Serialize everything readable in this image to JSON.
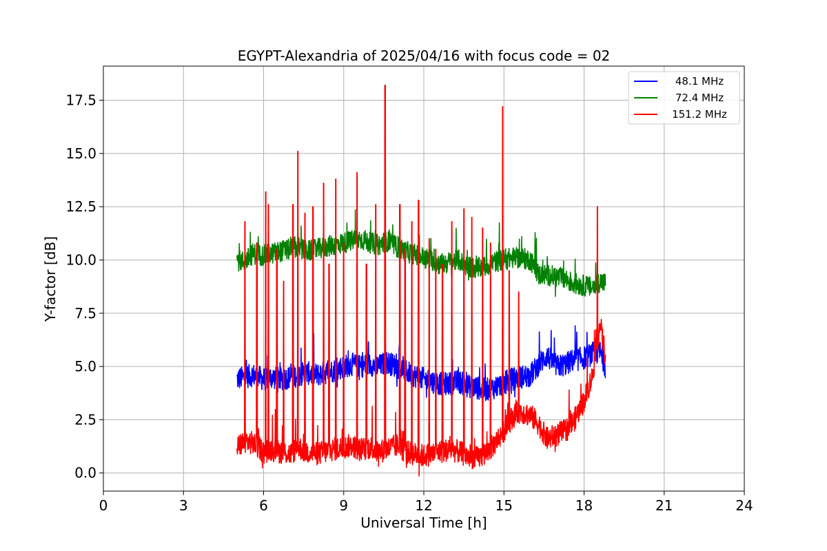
{
  "chart_data": {
    "type": "line",
    "title": "EGYPT-Alexandria of 2025/04/16 with focus code = 02",
    "xlabel": "Universal Time [h]",
    "ylabel": "Y-factor [dB]",
    "xlim": [
      0,
      24
    ],
    "ylim": [
      -0.85,
      19.1
    ],
    "xticks": [
      0,
      3,
      6,
      9,
      12,
      15,
      18,
      21,
      24
    ],
    "xtick_labels": [
      "0",
      "3",
      "6",
      "9",
      "12",
      "15",
      "18",
      "21",
      "24"
    ],
    "yticks": [
      0.0,
      2.5,
      5.0,
      7.5,
      10.0,
      12.5,
      15.0,
      17.5
    ],
    "ytick_labels": [
      "0.0",
      "2.5",
      "5.0",
      "7.5",
      "10.0",
      "12.5",
      "15.0",
      "17.5"
    ],
    "grid": true,
    "legend_position": "top-right",
    "series": [
      {
        "name": "48.1 MHz",
        "legend_label": "  48.1 MHz",
        "color": "#0000ff",
        "x": [
          5.0,
          5.3,
          5.6,
          6.0,
          6.3,
          6.6,
          7.0,
          7.3,
          7.6,
          8.0,
          8.3,
          8.6,
          9.0,
          9.3,
          9.6,
          10.0,
          10.3,
          10.6,
          11.0,
          11.3,
          11.6,
          12.0,
          12.3,
          12.6,
          13.0,
          13.3,
          13.6,
          14.0,
          14.3,
          14.6,
          15.0,
          15.3,
          15.6,
          16.0,
          16.3,
          16.6,
          17.0,
          17.3,
          17.6,
          18.0,
          18.3,
          18.6,
          18.8
        ],
        "y": [
          4.4,
          4.5,
          4.6,
          4.4,
          4.5,
          4.4,
          4.5,
          4.6,
          4.7,
          4.6,
          4.7,
          4.8,
          5.0,
          5.1,
          5.0,
          5.1,
          5.0,
          5.2,
          5.0,
          4.8,
          4.6,
          4.4,
          4.3,
          4.2,
          4.2,
          4.3,
          4.1,
          4.0,
          3.9,
          4.0,
          4.2,
          4.4,
          4.5,
          4.6,
          5.1,
          5.5,
          5.0,
          5.1,
          5.3,
          5.4,
          5.6,
          5.7,
          5.0
        ]
      },
      {
        "name": "72.4 MHz",
        "legend_label": "  72.4 MHz",
        "color": "#008000",
        "x": [
          5.0,
          5.3,
          5.6,
          6.0,
          6.3,
          6.6,
          7.0,
          7.3,
          7.6,
          8.0,
          8.3,
          8.6,
          9.0,
          9.3,
          9.6,
          10.0,
          10.3,
          10.6,
          11.0,
          11.3,
          11.6,
          12.0,
          12.3,
          12.6,
          13.0,
          13.3,
          13.6,
          14.0,
          14.3,
          14.6,
          15.0,
          15.3,
          15.6,
          16.0,
          16.3,
          16.6,
          17.0,
          17.3,
          17.6,
          18.0,
          18.3,
          18.6,
          18.8
        ],
        "y": [
          10.0,
          9.9,
          10.3,
          10.2,
          10.3,
          10.4,
          10.5,
          10.6,
          10.4,
          10.5,
          10.6,
          10.7,
          10.8,
          10.9,
          11.0,
          10.8,
          10.7,
          10.9,
          10.6,
          10.4,
          10.3,
          10.1,
          10.0,
          9.8,
          9.9,
          10.0,
          9.7,
          9.6,
          9.7,
          9.9,
          10.0,
          10.1,
          10.1,
          10.0,
          9.3,
          9.3,
          9.2,
          9.1,
          8.9,
          8.8,
          8.7,
          9.0,
          8.9
        ]
      },
      {
        "name": "151.2 MHz",
        "legend_label": "151.2 MHz",
        "color": "#ff0000",
        "x": [
          5.0,
          5.3,
          5.6,
          6.0,
          6.3,
          6.6,
          7.0,
          7.3,
          7.6,
          8.0,
          8.3,
          8.6,
          9.0,
          9.3,
          9.6,
          10.0,
          10.3,
          10.6,
          11.0,
          11.3,
          11.6,
          12.0,
          12.3,
          12.6,
          13.0,
          13.3,
          13.6,
          14.0,
          14.3,
          14.6,
          15.0,
          15.3,
          15.6,
          16.0,
          16.3,
          16.6,
          17.0,
          17.3,
          17.6,
          18.0,
          18.3,
          18.6,
          18.8
        ],
        "y": [
          1.2,
          1.5,
          1.4,
          1.0,
          1.1,
          1.0,
          0.9,
          1.2,
          1.0,
          0.9,
          1.0,
          1.1,
          1.2,
          1.3,
          1.1,
          1.2,
          1.0,
          1.1,
          1.3,
          1.0,
          0.9,
          0.8,
          0.9,
          1.0,
          1.1,
          1.0,
          0.8,
          0.7,
          0.9,
          1.3,
          2.0,
          2.6,
          2.9,
          2.7,
          2.3,
          1.6,
          1.8,
          2.0,
          2.4,
          3.4,
          4.5,
          7.0,
          5.5
        ]
      }
    ],
    "spikes": [
      {
        "series": "151.2 MHz",
        "x": [
          5.3,
          5.75,
          6.08,
          6.18,
          6.5,
          6.75,
          7.1,
          7.28,
          7.55,
          7.85,
          8.25,
          8.45,
          8.7,
          9.0,
          9.5,
          9.85,
          10.2,
          10.55,
          11.1,
          11.3,
          11.55,
          11.8,
          12.2,
          12.45,
          12.7,
          13.05,
          13.5,
          13.8,
          14.2,
          14.5,
          14.95,
          15.2,
          15.55,
          18.5
        ],
        "y": [
          11.8,
          10.8,
          13.2,
          12.6,
          10.5,
          9.0,
          12.6,
          15.1,
          12.2,
          12.5,
          13.6,
          9.8,
          13.8,
          10.8,
          14.1,
          9.8,
          12.6,
          18.2,
          12.6,
          10.5,
          11.8,
          12.8,
          11.0,
          10.5,
          9.8,
          11.8,
          12.4,
          12.0,
          11.5,
          10.8,
          17.2,
          9.5,
          8.5,
          12.5
        ]
      }
    ],
    "noise_amplitude": {
      "48.1 MHz": 0.55,
      "72.4 MHz": 0.5,
      "151.2 MHz": 0.55
    }
  }
}
